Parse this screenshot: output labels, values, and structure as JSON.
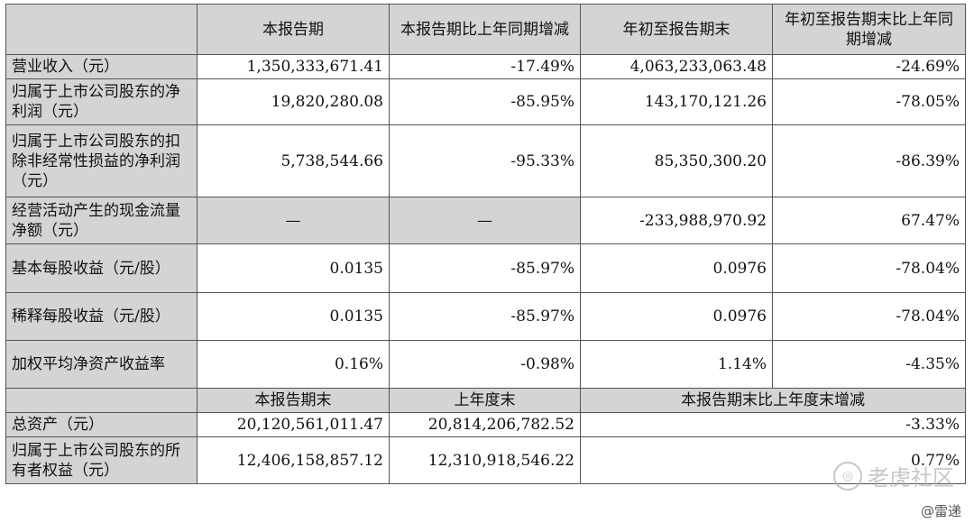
{
  "header": {
    "col1": "本报告期",
    "col2": "本报告期比上年同期增减",
    "col3": "年初至报告期末",
    "col4": "年初至报告期末比上年同期增减"
  },
  "rows": [
    {
      "label": "营业收入（元）",
      "v1": "1,350,333,671.41",
      "v2": "-17.49%",
      "v3": "4,063,233,063.48",
      "v4": "-24.69%"
    },
    {
      "label": "归属于上市公司股东的净利润（元）",
      "v1": "19,820,280.08",
      "v2": "-85.95%",
      "v3": "143,170,121.26",
      "v4": "-78.05%"
    },
    {
      "label": "归属于上市公司股东的扣除非经常性损益的净利润（元）",
      "v1": "5,738,544.66",
      "v2": "-95.33%",
      "v3": "85,350,300.20",
      "v4": "-86.39%"
    },
    {
      "label": "经营活动产生的现金流量净额（元）",
      "v1": "—",
      "v2": "—",
      "v3": "-233,988,970.92",
      "v4": "67.47%"
    },
    {
      "label": "基本每股收益（元/股）",
      "v1": "0.0135",
      "v2": "-85.97%",
      "v3": "0.0976",
      "v4": "-78.04%"
    },
    {
      "label": "稀释每股收益（元/股）",
      "v1": "0.0135",
      "v2": "-85.97%",
      "v3": "0.0976",
      "v4": "-78.04%"
    },
    {
      "label": "加权平均净资产收益率",
      "v1": "0.16%",
      "v2": "-0.98%",
      "v3": "1.14%",
      "v4": "-4.35%"
    }
  ],
  "header2": {
    "col1": "本报告期末",
    "col2": "上年度末",
    "col3": "本报告期末比上年度末增减"
  },
  "rows2": [
    {
      "label": "总资产（元）",
      "v1": "20,120,561,011.47",
      "v2": "20,814,206,782.52",
      "v3": "-3.33%"
    },
    {
      "label": "归属于上市公司股东的所有者权益（元）",
      "v1": "12,406,158,857.12",
      "v2": "12,310,918,546.22",
      "v3": "0.77%"
    }
  ],
  "watermark": "老虎社区",
  "credit": "@雷递"
}
